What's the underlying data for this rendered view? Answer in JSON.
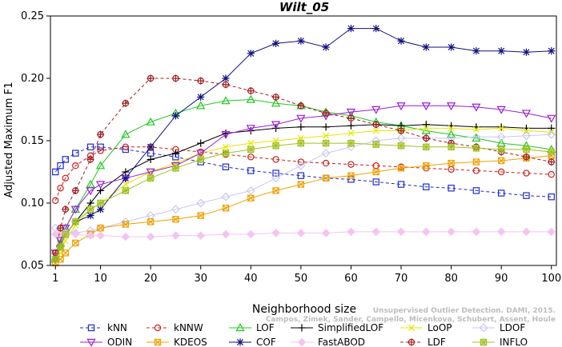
{
  "chart_data": {
    "type": "line",
    "title": "Wilt_05",
    "xlabel": "Neighborhood size",
    "ylabel": "Adjusted Maximum F1",
    "xlim": [
      1,
      100
    ],
    "ylim": [
      0.05,
      0.25
    ],
    "xticks": [
      1,
      10,
      20,
      30,
      40,
      50,
      60,
      70,
      80,
      90,
      100
    ],
    "yticks": [
      0.05,
      0.1,
      0.15,
      0.2,
      0.25
    ],
    "ytick_labels": [
      "0.05",
      "0.10",
      "0.15",
      "0.20",
      "0.25"
    ],
    "grid": false,
    "legend_position": "bottom",
    "x": [
      1,
      2,
      3,
      5,
      8,
      10,
      15,
      20,
      25,
      30,
      35,
      40,
      45,
      50,
      55,
      60,
      65,
      70,
      75,
      80,
      85,
      90,
      95,
      100
    ],
    "series": [
      {
        "name": "kNN",
        "color": "#1f2bcc",
        "marker": "square",
        "dash": "4,3",
        "values": [
          0.125,
          0.13,
          0.135,
          0.14,
          0.145,
          0.145,
          0.143,
          0.14,
          0.137,
          0.133,
          0.129,
          0.126,
          0.124,
          0.122,
          0.12,
          0.119,
          0.117,
          0.115,
          0.113,
          0.112,
          0.11,
          0.108,
          0.106,
          0.105
        ]
      },
      {
        "name": "kNNW",
        "color": "#cc1f1f",
        "marker": "circle",
        "dash": "4,3",
        "values": [
          0.102,
          0.112,
          0.12,
          0.13,
          0.138,
          0.142,
          0.145,
          0.145,
          0.143,
          0.141,
          0.139,
          0.137,
          0.135,
          0.133,
          0.132,
          0.131,
          0.13,
          0.129,
          0.128,
          0.127,
          0.126,
          0.125,
          0.124,
          0.123
        ]
      },
      {
        "name": "LOF",
        "color": "#1ec81e",
        "marker": "triangle-up",
        "dash": "",
        "values": [
          0.055,
          0.068,
          0.08,
          0.095,
          0.115,
          0.13,
          0.155,
          0.165,
          0.172,
          0.178,
          0.182,
          0.183,
          0.18,
          0.178,
          0.173,
          0.17,
          0.165,
          0.162,
          0.158,
          0.155,
          0.152,
          0.148,
          0.146,
          0.143
        ]
      },
      {
        "name": "SimplifiedLOF",
        "color": "#000000",
        "marker": "plus",
        "dash": "",
        "values": [
          0.054,
          0.065,
          0.075,
          0.085,
          0.1,
          0.11,
          0.125,
          0.135,
          0.14,
          0.148,
          0.156,
          0.158,
          0.16,
          0.161,
          0.161,
          0.162,
          0.163,
          0.162,
          0.163,
          0.162,
          0.161,
          0.161,
          0.16,
          0.16
        ]
      },
      {
        "name": "LoOP",
        "color": "#e6e600",
        "marker": "cross",
        "dash": "",
        "values": [
          0.052,
          0.06,
          0.07,
          0.082,
          0.095,
          0.1,
          0.115,
          0.125,
          0.132,
          0.14,
          0.145,
          0.148,
          0.15,
          0.152,
          0.154,
          0.156,
          0.158,
          0.158,
          0.16,
          0.16,
          0.159,
          0.16,
          0.158,
          0.157
        ]
      },
      {
        "name": "LDOF",
        "color": "#c8c8f0",
        "marker": "diamond",
        "dash": "",
        "values": [
          0.08,
          0.079,
          0.077,
          0.076,
          0.078,
          0.08,
          0.085,
          0.09,
          0.095,
          0.1,
          0.105,
          0.11,
          0.12,
          0.13,
          0.14,
          0.145,
          0.15,
          0.152,
          0.152,
          0.152,
          0.153,
          0.153,
          0.154,
          0.155
        ]
      },
      {
        "name": "ODIN",
        "color": "#9b1fd6",
        "marker": "triangle-down",
        "dash": "",
        "values": [
          0.06,
          0.07,
          0.08,
          0.095,
          0.11,
          0.115,
          0.12,
          0.125,
          0.13,
          0.14,
          0.155,
          0.16,
          0.163,
          0.168,
          0.17,
          0.173,
          0.175,
          0.178,
          0.178,
          0.178,
          0.177,
          0.175,
          0.172,
          0.168
        ]
      },
      {
        "name": "KDEOS",
        "color": "#f0a000",
        "marker": "square-x",
        "dash": "",
        "values": [
          0.052,
          0.055,
          0.06,
          0.068,
          0.075,
          0.08,
          0.083,
          0.085,
          0.087,
          0.09,
          0.096,
          0.104,
          0.11,
          0.115,
          0.12,
          0.122,
          0.125,
          0.128,
          0.13,
          0.132,
          0.133,
          0.134,
          0.136,
          0.138
        ]
      },
      {
        "name": "COF",
        "color": "#101080",
        "marker": "star",
        "dash": "",
        "values": [
          0.055,
          0.065,
          0.075,
          0.085,
          0.09,
          0.095,
          0.12,
          0.145,
          0.17,
          0.185,
          0.2,
          0.22,
          0.228,
          0.23,
          0.225,
          0.24,
          0.24,
          0.23,
          0.225,
          0.225,
          0.222,
          0.222,
          0.221,
          0.222
        ]
      },
      {
        "name": "FastABOD",
        "color": "#f4c4f0",
        "marker": "diamond-filled",
        "dash": "",
        "values": [
          0.075,
          0.076,
          0.076,
          0.075,
          0.074,
          0.074,
          0.073,
          0.073,
          0.074,
          0.074,
          0.075,
          0.075,
          0.076,
          0.076,
          0.076,
          0.077,
          0.077,
          0.077,
          0.077,
          0.077,
          0.077,
          0.077,
          0.077,
          0.077
        ]
      },
      {
        "name": "LDF",
        "color": "#a02020",
        "marker": "circle-plus",
        "dash": "4,3",
        "values": [
          0.06,
          0.08,
          0.095,
          0.11,
          0.135,
          0.155,
          0.18,
          0.2,
          0.2,
          0.198,
          0.195,
          0.19,
          0.185,
          0.178,
          0.172,
          0.168,
          0.163,
          0.158,
          0.152,
          0.148,
          0.145,
          0.141,
          0.137,
          0.133
        ]
      },
      {
        "name": "INFLO",
        "color": "#a0c020",
        "marker": "square-star",
        "dash": "",
        "values": [
          0.055,
          0.065,
          0.075,
          0.085,
          0.095,
          0.1,
          0.11,
          0.12,
          0.128,
          0.135,
          0.14,
          0.143,
          0.146,
          0.148,
          0.148,
          0.148,
          0.147,
          0.146,
          0.145,
          0.145,
          0.144,
          0.143,
          0.143,
          0.141
        ]
      }
    ]
  },
  "watermark": {
    "line1": "Unsupervised Outlier Detection. DAMI, 2015.",
    "line2": "Campos, Zimek, Sander, Campello, Micenkova, Schubert, Assent, Houle"
  }
}
